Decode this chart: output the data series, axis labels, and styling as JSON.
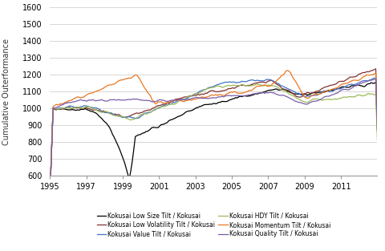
{
  "title": "",
  "ylabel": "Cumulative Outerformance",
  "xlim": [
    1995,
    2013
  ],
  "ylim": [
    600,
    1600
  ],
  "yticks": [
    600,
    700,
    800,
    900,
    1000,
    1100,
    1200,
    1300,
    1400,
    1500,
    1600
  ],
  "xticks": [
    1995,
    1997,
    1999,
    2001,
    2003,
    2005,
    2007,
    2009,
    2011
  ],
  "series_order": [
    "Low Size",
    "Low Volatility",
    "Value",
    "HDY",
    "Momentum",
    "Quality"
  ],
  "series": {
    "Low Size": {
      "color": "#000000",
      "label": "Kokusai Low Size Tilt / Kokusai"
    },
    "Low Volatility": {
      "color": "#833232",
      "label": "Kokusai Low Volatility Tilt / Kokusai"
    },
    "Value": {
      "color": "#4472C4",
      "label": "Kokusai Value Tilt / Kokusai"
    },
    "HDY": {
      "color": "#9BBB59",
      "label": "Kokusai HDY Tilt / Kokusai"
    },
    "Momentum": {
      "color": "#E87722",
      "label": "Kokusai Momentum Tilt / Kokusai"
    },
    "Quality": {
      "color": "#7B5EA7",
      "label": "Kokusai Quality Tilt / Kokusai"
    }
  },
  "legend_col1": [
    "Low Size",
    "Value",
    "Momentum"
  ],
  "legend_col2": [
    "Low Volatility",
    "HDY",
    "Quality"
  ],
  "background_color": "#FFFFFF",
  "grid_color": "#C8C8C8"
}
